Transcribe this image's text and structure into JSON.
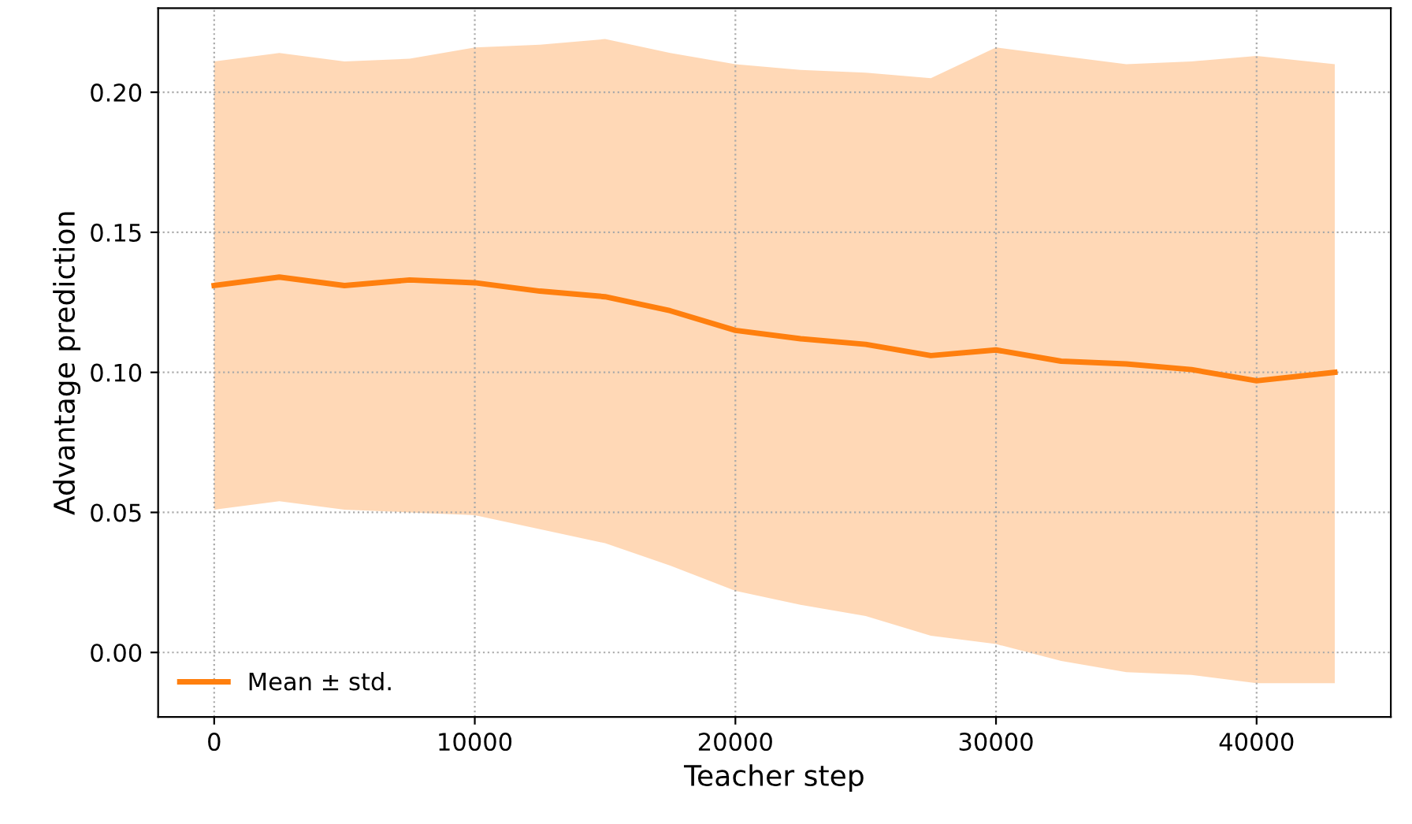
{
  "chart_data": {
    "type": "line",
    "xlabel": "Teacher step",
    "ylabel": "Advantage prediction",
    "x": [
      0,
      2500,
      5000,
      7500,
      10000,
      12500,
      15000,
      17500,
      20000,
      22500,
      25000,
      27500,
      30000,
      32500,
      35000,
      37500,
      40000,
      43000
    ],
    "series": [
      {
        "name": "Mean ± std.",
        "color": "#ff7f0e",
        "values": [
          0.131,
          0.134,
          0.131,
          0.133,
          0.132,
          0.129,
          0.127,
          0.122,
          0.115,
          0.112,
          0.11,
          0.106,
          0.108,
          0.104,
          0.103,
          0.101,
          0.097,
          0.1
        ],
        "upper": [
          0.211,
          0.214,
          0.211,
          0.212,
          0.216,
          0.217,
          0.219,
          0.214,
          0.21,
          0.208,
          0.207,
          0.205,
          0.216,
          0.213,
          0.21,
          0.211,
          0.213,
          0.21
        ],
        "lower": [
          0.051,
          0.054,
          0.051,
          0.05,
          0.049,
          0.044,
          0.039,
          0.031,
          0.022,
          0.017,
          0.013,
          0.006,
          0.003,
          -0.003,
          -0.007,
          -0.008,
          -0.011,
          -0.011
        ]
      }
    ],
    "xlim": [
      -2150,
      45150
    ],
    "ylim": [
      -0.023,
      0.23
    ],
    "xticks": [
      0,
      10000,
      20000,
      30000,
      40000
    ],
    "yticks": [
      {
        "value": 0,
        "label": "0.00"
      },
      {
        "value": 0.05,
        "label": "0.05"
      },
      {
        "value": 0.1,
        "label": "0.10"
      },
      {
        "value": 0.15,
        "label": "0.15"
      },
      {
        "value": 0.2,
        "label": "0.20"
      }
    ],
    "grid": true,
    "legend": "bottom left",
    "line_style": "solid",
    "marker": "none"
  }
}
